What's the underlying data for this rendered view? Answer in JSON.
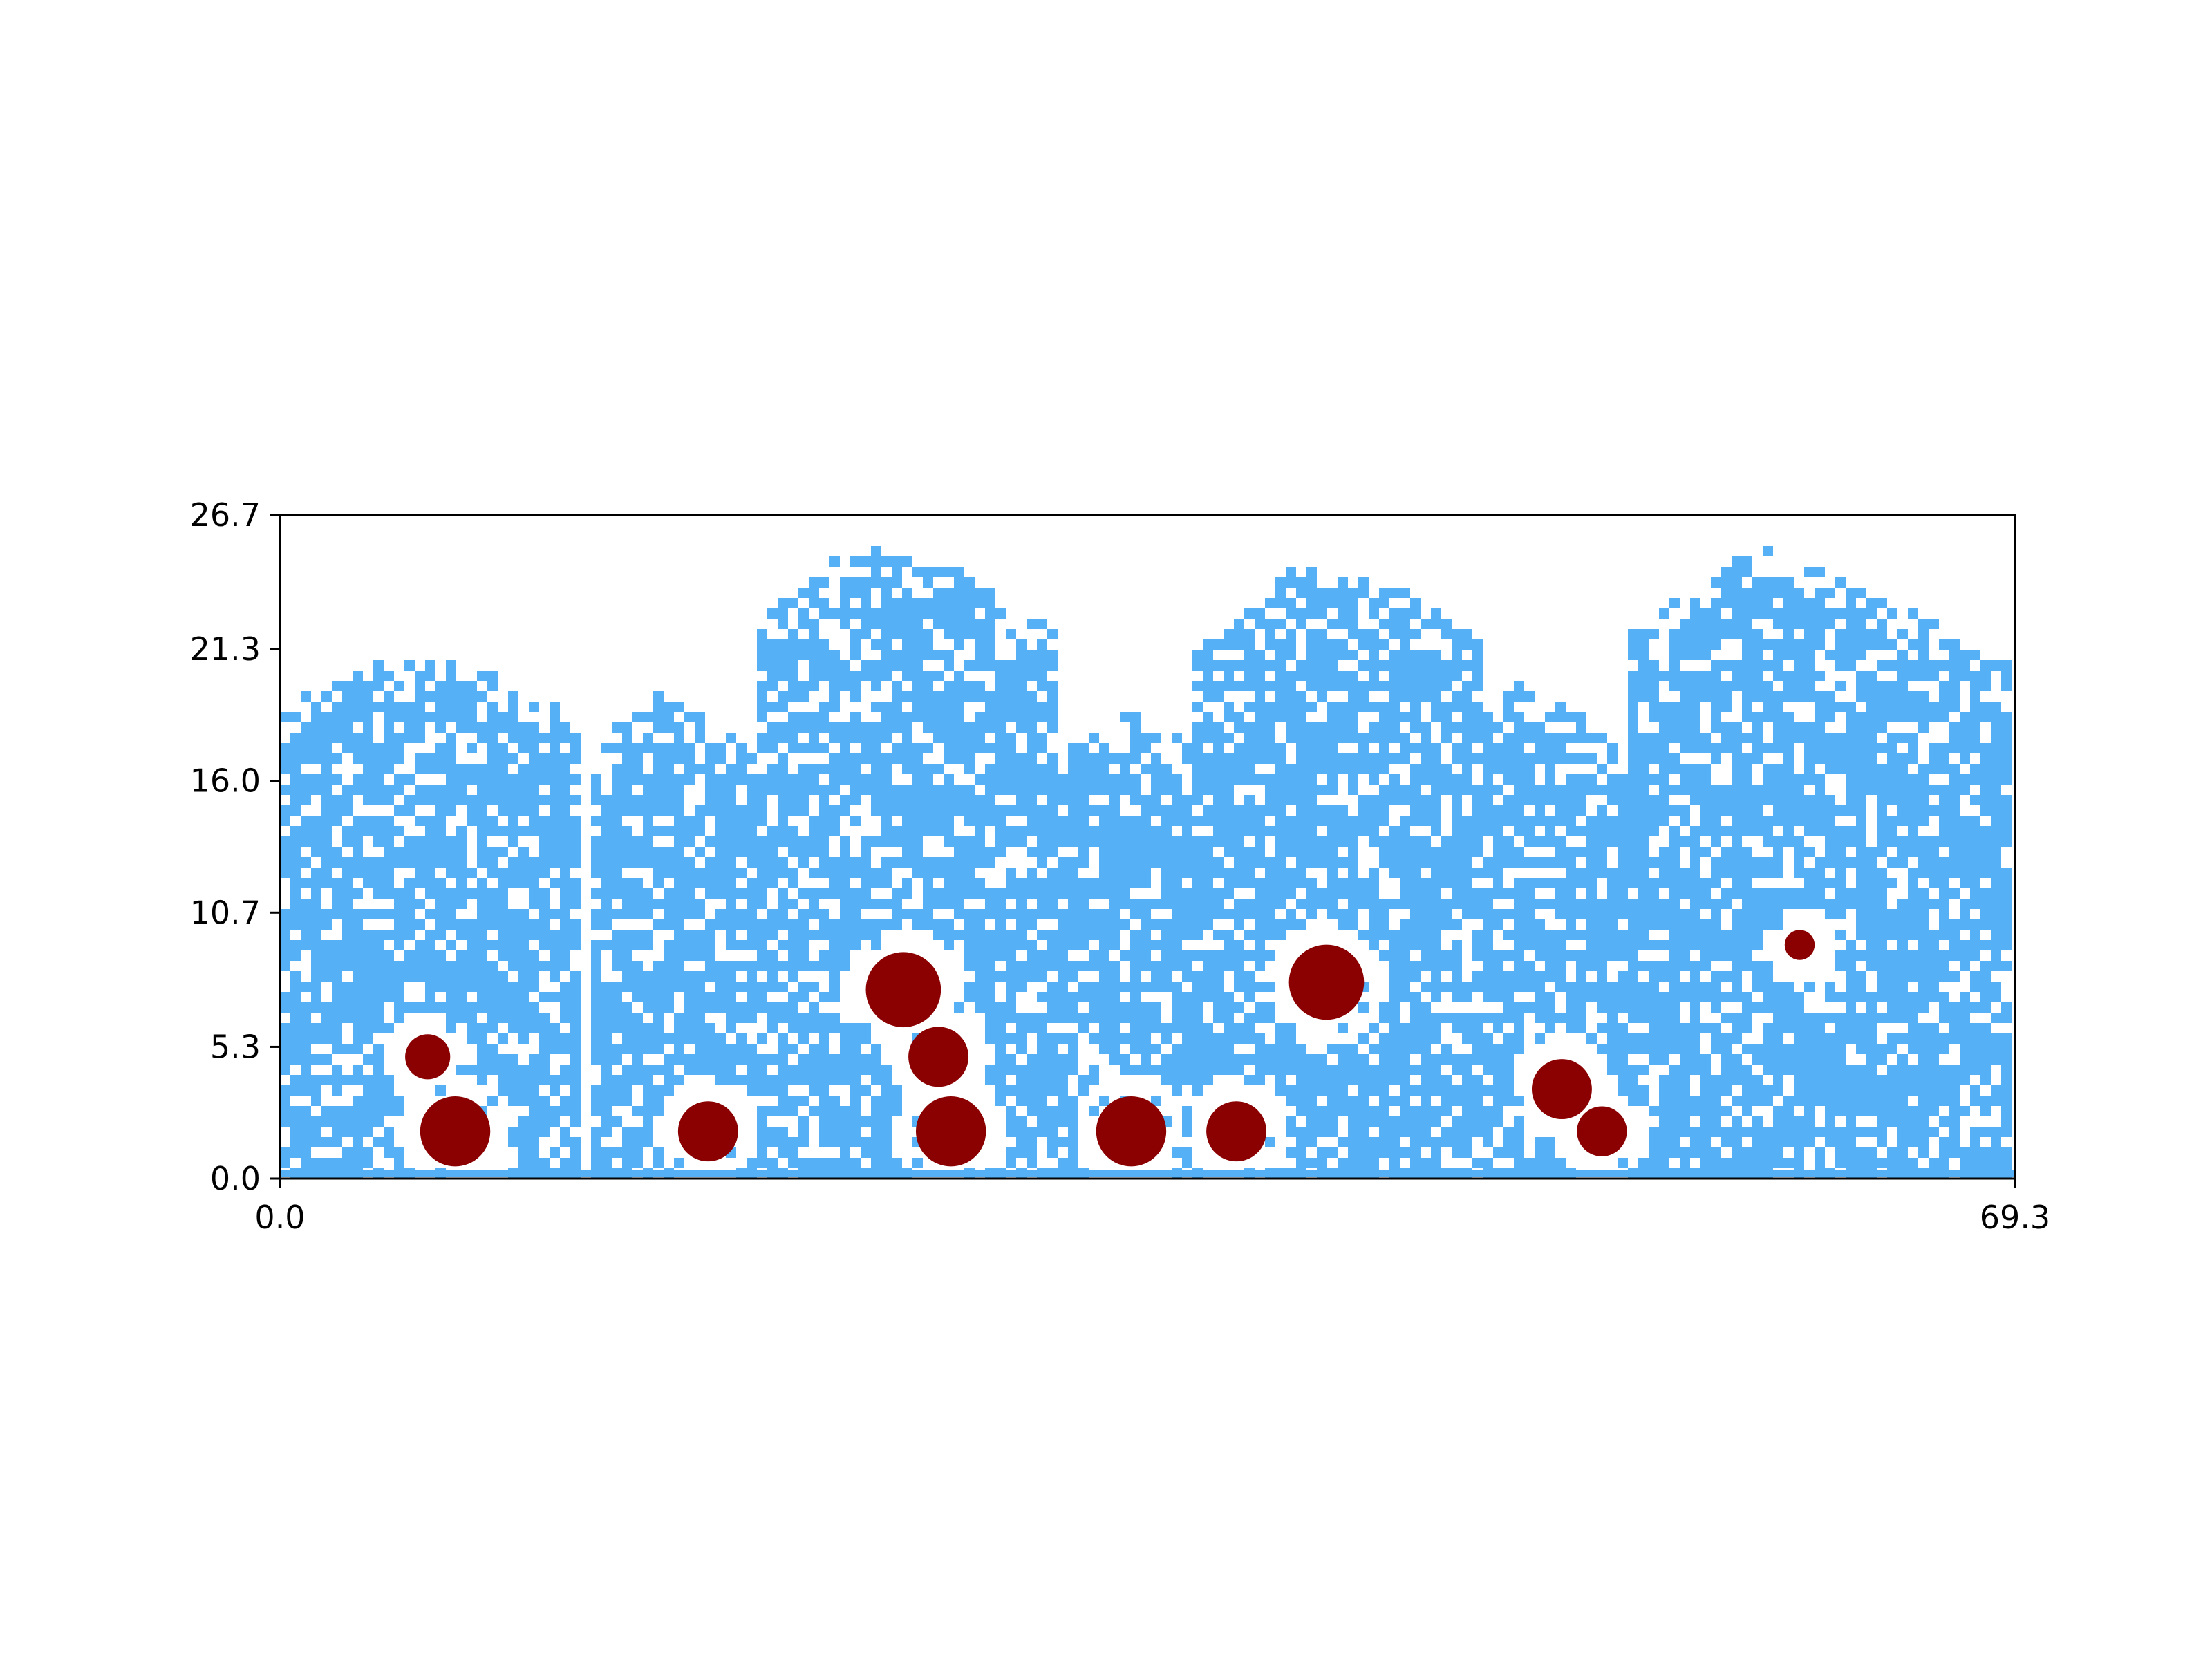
{
  "chart_data": {
    "type": "scatter",
    "title": "",
    "xlabel": "",
    "ylabel": "",
    "xlim": [
      0.0,
      69.3
    ],
    "ylim": [
      0.0,
      26.7
    ],
    "x_ticks": [
      0.0,
      69.3
    ],
    "x_tick_labels": [
      "0.0",
      "69.3"
    ],
    "y_ticks": [
      0.0,
      5.3,
      10.7,
      16.0,
      21.3,
      26.7
    ],
    "y_tick_labels": [
      "0.0",
      "5.3",
      "10.7",
      "16.0",
      "21.3",
      "26.7"
    ],
    "grid": false,
    "legend": "none",
    "colors": {
      "particles": "#55b0f5",
      "obstacles": "#8b0000",
      "axes": "#000000"
    },
    "particle_blobs": [
      {
        "x": [
          0.0,
          12.0
        ],
        "y_top": [
          19.0,
          21.2,
          20.5,
          18.5
        ],
        "y_bottom": 0.0
      },
      {
        "x": [
          12.5,
          20.5
        ],
        "y_top": [
          17.5,
          19.6,
          18.0,
          15.5
        ],
        "y_bottom": 0.0
      },
      {
        "x": [
          19.0,
          31.0
        ],
        "y_top": [
          22.5,
          25.5,
          24.5,
          22.0
        ],
        "y_bottom": 0.0
      },
      {
        "x": [
          31.0,
          38.0
        ],
        "y_top": [
          17.0,
          19.0,
          18.0,
          16.0
        ],
        "y_bottom": 0.0
      },
      {
        "x": [
          36.5,
          48.0
        ],
        "y_top": [
          21.0,
          24.5,
          24.2,
          21.5
        ],
        "y_bottom": 0.0
      },
      {
        "x": [
          47.0,
          55.0
        ],
        "y_top": [
          17.5,
          20.0,
          18.5,
          15.0
        ],
        "y_bottom": 0.0
      },
      {
        "x": [
          54.0,
          69.3
        ],
        "y_top": [
          22.0,
          25.5,
          23.5,
          20.5
        ],
        "y_bottom": 0.0
      }
    ],
    "obstacles": [
      {
        "x": 5.9,
        "y": 4.9,
        "r": 0.9
      },
      {
        "x": 7.0,
        "y": 1.9,
        "r": 1.4
      },
      {
        "x": 17.1,
        "y": 1.9,
        "r": 1.2
      },
      {
        "x": 24.9,
        "y": 7.6,
        "r": 1.5
      },
      {
        "x": 26.3,
        "y": 4.9,
        "r": 1.2
      },
      {
        "x": 26.8,
        "y": 1.9,
        "r": 1.4
      },
      {
        "x": 34.0,
        "y": 1.9,
        "r": 1.4
      },
      {
        "x": 38.2,
        "y": 1.9,
        "r": 1.2
      },
      {
        "x": 41.8,
        "y": 7.9,
        "r": 1.5
      },
      {
        "x": 51.2,
        "y": 3.6,
        "r": 1.2
      },
      {
        "x": 52.8,
        "y": 1.9,
        "r": 1.0
      },
      {
        "x": 60.7,
        "y": 9.4,
        "r": 0.6
      }
    ]
  }
}
